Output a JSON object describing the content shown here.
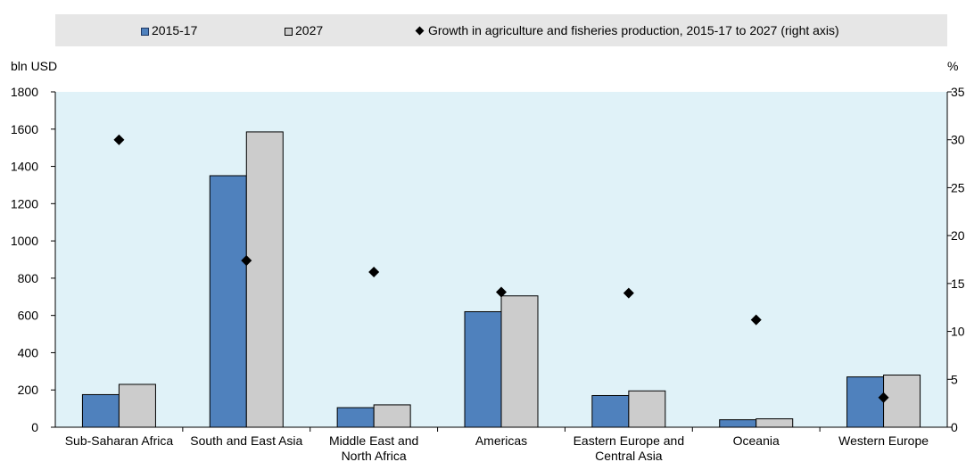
{
  "chart_data": {
    "type": "bar",
    "categories": [
      [
        "Sub-Saharan Africa"
      ],
      [
        "South and East Asia"
      ],
      [
        "Middle East and",
        "North Africa"
      ],
      [
        "Americas"
      ],
      [
        "Eastern Europe and",
        "Central Asia"
      ],
      [
        "Oceania"
      ],
      [
        "Western Europe"
      ]
    ],
    "series": [
      {
        "name": "2015-17",
        "type": "bar",
        "axis": "left",
        "color": "#4f81bd",
        "values": [
          175,
          1350,
          105,
          620,
          170,
          40,
          270
        ]
      },
      {
        "name": "2027",
        "type": "bar",
        "axis": "left",
        "color": "#cccccc",
        "values": [
          230,
          1585,
          120,
          705,
          195,
          45,
          280
        ]
      },
      {
        "name": "Growth in agriculture and fisheries production, 2015-17 to 2027 (right axis)",
        "type": "scatter",
        "axis": "right",
        "color": "#000000",
        "marker": "diamond",
        "values": [
          30.0,
          17.4,
          16.2,
          14.1,
          14.0,
          11.2,
          3.1
        ]
      }
    ],
    "ylabel": "bln USD",
    "y2label": "%",
    "ylim": [
      0,
      1800
    ],
    "y2lim": [
      0,
      35
    ],
    "yticks": [
      0,
      200,
      400,
      600,
      800,
      1000,
      1200,
      1400,
      1600,
      1800
    ],
    "y2ticks": [
      0,
      5,
      10,
      15,
      20,
      25,
      30,
      35
    ],
    "plot_background": "#e0f2f8",
    "grid": false,
    "legend_position": "top"
  },
  "legend": {
    "items": [
      {
        "label": "2015-17"
      },
      {
        "label": "2027"
      },
      {
        "label": "Growth in agriculture and fisheries production, 2015-17 to 2027 (right axis)"
      }
    ]
  },
  "axes": {
    "left_unit": "bln USD",
    "right_unit": "%"
  }
}
